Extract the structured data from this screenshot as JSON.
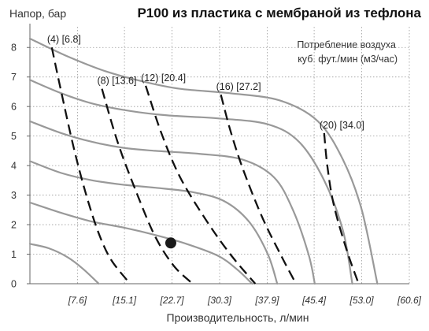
{
  "chart_data": {
    "type": "line",
    "title": "P100 из пластика с мембраной из тефлона",
    "ylabel": "Напор, бар",
    "xlabel": "Производительность, л/мин",
    "legend_title_line1": "Потребление воздуха",
    "legend_title_line2": "куб. фут./мин (м3/час)",
    "xlim": [
      0,
      60.6
    ],
    "ylim": [
      0,
      8.7
    ],
    "grid": "dotted",
    "y_ticks": [
      0,
      1,
      2,
      3,
      4,
      5,
      6,
      7,
      8
    ],
    "x_ticks": [
      {
        "value": 7.6,
        "label": "[7.6]"
      },
      {
        "value": 15.1,
        "label": "[15.1]"
      },
      {
        "value": 22.7,
        "label": "[22.7]"
      },
      {
        "value": 30.3,
        "label": "[30.3]"
      },
      {
        "value": 37.9,
        "label": "[37.9]"
      },
      {
        "value": 45.4,
        "label": "[45.4]"
      },
      {
        "value": 53.0,
        "label": "[53.0]"
      },
      {
        "value": 60.6,
        "label": "[60.6]"
      }
    ],
    "performance_curves": [
      {
        "points": [
          [
            0,
            8.3
          ],
          [
            6,
            7.7
          ],
          [
            12,
            7.2
          ],
          [
            18,
            6.85
          ],
          [
            24,
            6.6
          ],
          [
            32,
            6.45
          ],
          [
            40,
            6.2
          ],
          [
            46,
            5.5
          ],
          [
            50,
            4.2
          ],
          [
            53,
            2.5
          ],
          [
            55.5,
            0
          ]
        ]
      },
      {
        "points": [
          [
            0,
            6.9
          ],
          [
            5,
            6.45
          ],
          [
            10,
            6.1
          ],
          [
            16,
            5.85
          ],
          [
            22,
            5.7
          ],
          [
            30,
            5.6
          ],
          [
            38,
            5.4
          ],
          [
            43,
            4.8
          ],
          [
            47,
            3.5
          ],
          [
            50,
            1.8
          ],
          [
            51.5,
            0
          ]
        ]
      },
      {
        "points": [
          [
            0,
            5.5
          ],
          [
            5,
            5.1
          ],
          [
            10,
            4.8
          ],
          [
            15,
            4.6
          ],
          [
            20,
            4.5
          ],
          [
            27,
            4.4
          ],
          [
            34,
            4.2
          ],
          [
            39,
            3.6
          ],
          [
            42,
            2.5
          ],
          [
            44.5,
            1.0
          ],
          [
            45.5,
            0
          ]
        ]
      },
      {
        "points": [
          [
            0,
            4.15
          ],
          [
            5,
            3.75
          ],
          [
            10,
            3.5
          ],
          [
            15,
            3.35
          ],
          [
            20,
            3.25
          ],
          [
            26,
            3.1
          ],
          [
            31,
            2.8
          ],
          [
            35,
            2.1
          ],
          [
            38,
            1.0
          ],
          [
            39.5,
            0
          ]
        ]
      },
      {
        "points": [
          [
            0,
            2.75
          ],
          [
            5,
            2.4
          ],
          [
            10,
            2.1
          ],
          [
            15,
            1.9
          ],
          [
            20,
            1.65
          ],
          [
            25,
            1.35
          ],
          [
            30,
            0.95
          ],
          [
            33,
            0.5
          ],
          [
            35.5,
            0
          ]
        ]
      },
      {
        "points": [
          [
            0,
            1.35
          ],
          [
            3,
            1.2
          ],
          [
            6,
            0.9
          ],
          [
            8.5,
            0.5
          ],
          [
            11,
            0
          ]
        ]
      }
    ],
    "air_lines": [
      {
        "label": "(4) [6.8]",
        "points": [
          [
            3.5,
            8.0
          ],
          [
            5,
            6.5
          ],
          [
            7,
            4.6
          ],
          [
            9,
            3.0
          ],
          [
            11,
            1.7
          ],
          [
            13,
            0.8
          ],
          [
            16,
            0
          ]
        ]
      },
      {
        "label": "(8) [13.6]",
        "points": [
          [
            11.5,
            6.6
          ],
          [
            14,
            4.8
          ],
          [
            17,
            3.1
          ],
          [
            20,
            1.6
          ],
          [
            23,
            0.6
          ],
          [
            26,
            0
          ]
        ]
      },
      {
        "label": "(12) [20.4]",
        "points": [
          [
            18.5,
            6.7
          ],
          [
            21,
            5.1
          ],
          [
            24,
            3.6
          ],
          [
            28,
            2.2
          ],
          [
            32,
            1.0
          ],
          [
            36,
            0
          ]
        ]
      },
      {
        "label": "(16) [27.2]",
        "points": [
          [
            30.5,
            6.4
          ],
          [
            32,
            5.2
          ],
          [
            34,
            3.9
          ],
          [
            37,
            2.3
          ],
          [
            40,
            1.0
          ],
          [
            42.5,
            0
          ]
        ]
      },
      {
        "label": "(20) [34.0]",
        "points": [
          [
            47,
            5.1
          ],
          [
            47.5,
            4.0
          ],
          [
            48.5,
            2.7
          ],
          [
            50.5,
            1.2
          ],
          [
            52.5,
            0
          ]
        ]
      }
    ],
    "marker": {
      "x": 22.5,
      "y": 1.38
    }
  }
}
